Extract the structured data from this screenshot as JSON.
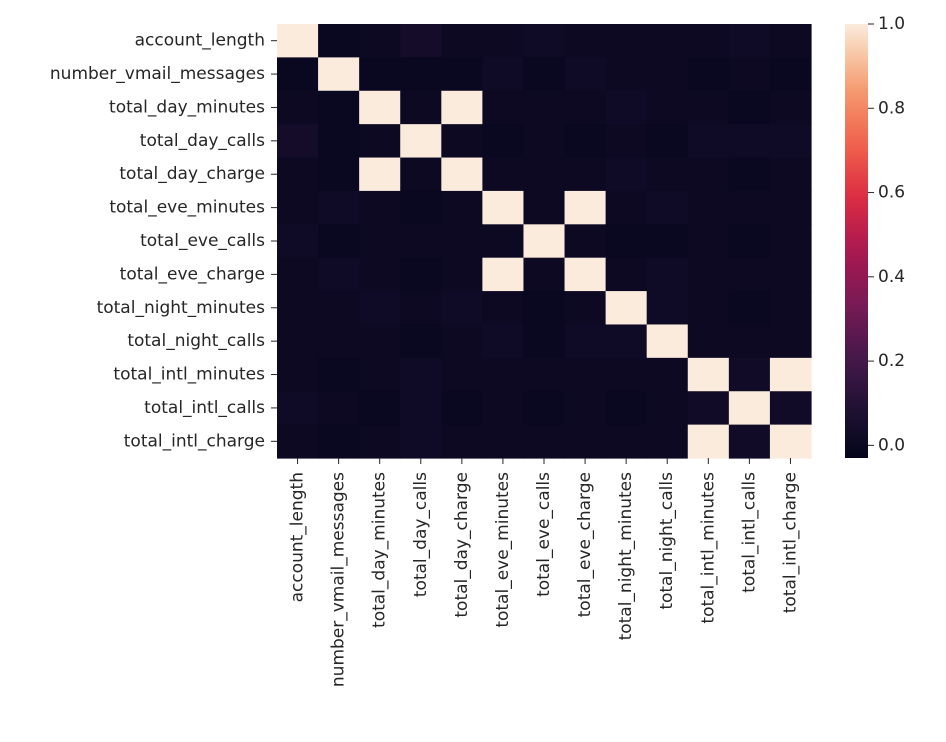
{
  "chart_data": {
    "type": "heatmap",
    "title": "",
    "xlabel": "",
    "ylabel": "",
    "labels": [
      "account_length",
      "number_vmail_messages",
      "total_day_minutes",
      "total_day_calls",
      "total_day_charge",
      "total_eve_minutes",
      "total_eve_calls",
      "total_eve_charge",
      "total_night_minutes",
      "total_night_calls",
      "total_intl_minutes",
      "total_intl_calls",
      "total_intl_charge"
    ],
    "matrix": [
      [
        1.0,
        0.0,
        0.01,
        0.04,
        0.01,
        0.01,
        0.02,
        0.01,
        0.01,
        0.01,
        0.01,
        0.02,
        0.01
      ],
      [
        0.0,
        1.0,
        0.0,
        0.0,
        0.0,
        0.02,
        0.0,
        0.02,
        0.01,
        0.01,
        0.0,
        0.01,
        0.0
      ],
      [
        0.01,
        0.0,
        1.0,
        0.01,
        1.0,
        0.01,
        0.01,
        0.01,
        0.02,
        0.01,
        0.01,
        0.0,
        0.01
      ],
      [
        0.04,
        0.0,
        0.01,
        1.0,
        0.01,
        0.0,
        0.01,
        0.0,
        0.01,
        0.0,
        0.02,
        0.02,
        0.02
      ],
      [
        0.01,
        0.0,
        1.0,
        0.01,
        1.0,
        0.01,
        0.01,
        0.01,
        0.02,
        0.01,
        0.01,
        0.0,
        0.01
      ],
      [
        0.01,
        0.02,
        0.01,
        0.0,
        0.01,
        1.0,
        0.01,
        1.0,
        0.01,
        0.02,
        0.01,
        0.01,
        0.01
      ],
      [
        0.02,
        0.0,
        0.01,
        0.01,
        0.01,
        0.01,
        1.0,
        0.01,
        0.0,
        0.0,
        0.01,
        0.0,
        0.01
      ],
      [
        0.01,
        0.02,
        0.01,
        0.0,
        0.01,
        1.0,
        0.01,
        1.0,
        0.01,
        0.02,
        0.01,
        0.01,
        0.01
      ],
      [
        0.01,
        0.01,
        0.02,
        0.01,
        0.02,
        0.01,
        0.0,
        0.01,
        1.0,
        0.02,
        0.01,
        0.0,
        0.01
      ],
      [
        0.01,
        0.01,
        0.01,
        0.0,
        0.01,
        0.02,
        0.0,
        0.02,
        0.02,
        1.0,
        0.01,
        0.01,
        0.01
      ],
      [
        0.01,
        0.0,
        0.01,
        0.02,
        0.01,
        0.01,
        0.01,
        0.01,
        0.01,
        0.01,
        1.0,
        0.03,
        1.0
      ],
      [
        0.02,
        0.01,
        0.0,
        0.02,
        0.0,
        0.01,
        0.0,
        0.01,
        0.0,
        0.01,
        0.03,
        1.0,
        0.03
      ],
      [
        0.01,
        0.0,
        0.01,
        0.02,
        0.01,
        0.01,
        0.01,
        0.01,
        0.01,
        0.01,
        1.0,
        0.03,
        1.0
      ]
    ],
    "colorbar": {
      "range": [
        -0.03,
        1.0
      ],
      "ticks": [
        0.0,
        0.2,
        0.4,
        0.6,
        0.8,
        1.0
      ],
      "tick_labels": [
        "0.0",
        "0.2",
        "0.4",
        "0.6",
        "0.8",
        "1.0"
      ],
      "colormap": "rocket"
    },
    "grid": false,
    "legend": "colorbar-right"
  }
}
